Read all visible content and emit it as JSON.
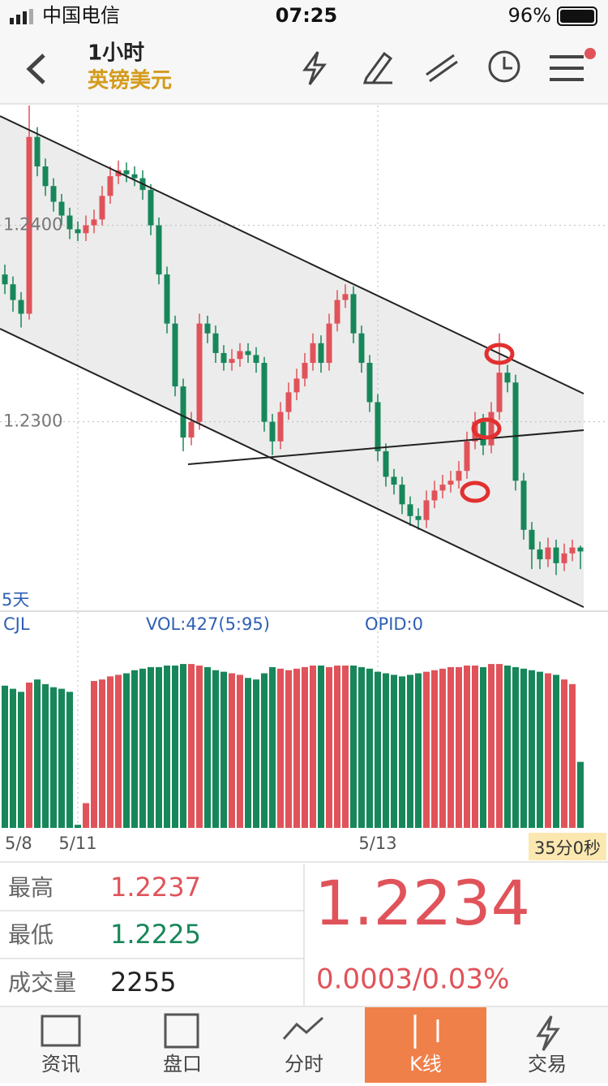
{
  "status_bar": {
    "carrier": "中国电信",
    "time": "07:25",
    "battery": "96%"
  },
  "header": {
    "period": "1小时",
    "symbol": "英镑美元"
  },
  "chart_data": {
    "type": "candlestick",
    "range_label": "5天",
    "up_color": "#e0535a",
    "down_color": "#17875a",
    "categories": [
      "5/8",
      null,
      null,
      null,
      null,
      null,
      null,
      null,
      null,
      "5/11",
      null,
      null,
      null,
      null,
      null,
      null,
      null,
      null,
      null,
      null,
      null,
      null,
      null,
      null,
      null,
      null,
      null,
      null,
      null,
      null,
      null,
      null,
      null,
      null,
      null,
      null,
      null,
      null,
      null,
      null,
      null,
      null,
      null,
      null,
      null,
      null,
      "5/13",
      null,
      null,
      null,
      null,
      null,
      null,
      null,
      null,
      null,
      null,
      null,
      null,
      null,
      null,
      null,
      null,
      null,
      null,
      null,
      null,
      null,
      null,
      null,
      null,
      null
    ],
    "candles": [
      [
        1.2375,
        1.238,
        1.2365,
        1.237
      ],
      [
        1.237,
        1.2374,
        1.2356,
        1.2362
      ],
      [
        1.2362,
        1.2366,
        1.2348,
        1.2355
      ],
      [
        1.2355,
        1.2461,
        1.2352,
        1.2445
      ],
      [
        1.2445,
        1.245,
        1.2425,
        1.243
      ],
      [
        1.243,
        1.2434,
        1.2415,
        1.242
      ],
      [
        1.242,
        1.2424,
        1.2407,
        1.2412
      ],
      [
        1.2412,
        1.2416,
        1.24,
        1.2405
      ],
      [
        1.2405,
        1.2409,
        1.2393,
        1.2398
      ],
      [
        1.2398,
        1.2402,
        1.2392,
        1.2396
      ],
      [
        1.2396,
        1.2405,
        1.2392,
        1.24
      ],
      [
        1.24,
        1.2408,
        1.2396,
        1.2403
      ],
      [
        1.2403,
        1.242,
        1.24,
        1.2415
      ],
      [
        1.2415,
        1.243,
        1.2411,
        1.2425
      ],
      [
        1.2425,
        1.2433,
        1.2421,
        1.2428
      ],
      [
        1.2428,
        1.2432,
        1.2422,
        1.2426
      ],
      [
        1.2426,
        1.243,
        1.242,
        1.2424
      ],
      [
        1.2424,
        1.2428,
        1.2413,
        1.2418
      ],
      [
        1.2418,
        1.2421,
        1.2395,
        1.24
      ],
      [
        1.24,
        1.2404,
        1.237,
        1.2375
      ],
      [
        1.2375,
        1.2379,
        1.2345,
        1.235
      ],
      [
        1.235,
        1.2354,
        1.2313,
        1.2318
      ],
      [
        1.2318,
        1.2322,
        1.2285,
        1.2292
      ],
      [
        1.2292,
        1.2305,
        1.2288,
        1.23
      ],
      [
        1.23,
        1.2355,
        1.2296,
        1.235
      ],
      [
        1.235,
        1.2354,
        1.234,
        1.2345
      ],
      [
        1.2345,
        1.2349,
        1.233,
        1.2335
      ],
      [
        1.2335,
        1.2339,
        1.2326,
        1.233
      ],
      [
        1.233,
        1.2337,
        1.2326,
        1.2332
      ],
      [
        1.2332,
        1.234,
        1.2328,
        1.2336
      ],
      [
        1.2336,
        1.234,
        1.233,
        1.2334
      ],
      [
        1.2334,
        1.2338,
        1.2325,
        1.233
      ],
      [
        1.233,
        1.2333,
        1.2295,
        1.23
      ],
      [
        1.23,
        1.2304,
        1.2283,
        1.229
      ],
      [
        1.229,
        1.231,
        1.2286,
        1.2305
      ],
      [
        1.2305,
        1.232,
        1.2301,
        1.2315
      ],
      [
        1.2315,
        1.2327,
        1.2311,
        1.2322
      ],
      [
        1.2322,
        1.2335,
        1.2318,
        1.233
      ],
      [
        1.233,
        1.2345,
        1.2326,
        1.234
      ],
      [
        1.234,
        1.2344,
        1.2325,
        1.233
      ],
      [
        1.233,
        1.2355,
        1.2326,
        1.235
      ],
      [
        1.235,
        1.2367,
        1.2346,
        1.2362
      ],
      [
        1.2362,
        1.237,
        1.2358,
        1.2365
      ],
      [
        1.2365,
        1.2369,
        1.234,
        1.2345
      ],
      [
        1.2345,
        1.2349,
        1.2325,
        1.233
      ],
      [
        1.233,
        1.2334,
        1.2305,
        1.231
      ],
      [
        1.231,
        1.2314,
        1.228,
        1.2285
      ],
      [
        1.2285,
        1.2289,
        1.2267,
        1.2272
      ],
      [
        1.2272,
        1.2276,
        1.2263,
        1.2268
      ],
      [
        1.2268,
        1.2272,
        1.2253,
        1.2258
      ],
      [
        1.2258,
        1.2262,
        1.2247,
        1.2252
      ],
      [
        1.2252,
        1.2256,
        1.2245,
        1.225
      ],
      [
        1.225,
        1.2265,
        1.2246,
        1.226
      ],
      [
        1.226,
        1.227,
        1.2256,
        1.2265
      ],
      [
        1.2265,
        1.2273,
        1.2261,
        1.2268
      ],
      [
        1.2268,
        1.2275,
        1.2264,
        1.227
      ],
      [
        1.227,
        1.228,
        1.2266,
        1.2275
      ],
      [
        1.2275,
        1.2295,
        1.2271,
        1.229
      ],
      [
        1.229,
        1.2305,
        1.2286,
        1.23
      ],
      [
        1.23,
        1.2304,
        1.2283,
        1.2288
      ],
      [
        1.2288,
        1.231,
        1.2284,
        1.2305
      ],
      [
        1.2305,
        1.2345,
        1.2301,
        1.2325
      ],
      [
        1.2325,
        1.2329,
        1.2315,
        1.232
      ],
      [
        1.232,
        1.2324,
        1.2265,
        1.227
      ],
      [
        1.227,
        1.2274,
        1.224,
        1.2245
      ],
      [
        1.2245,
        1.2249,
        1.2225,
        1.2235
      ],
      [
        1.2235,
        1.2239,
        1.2225,
        1.223
      ],
      [
        1.223,
        1.2241,
        1.2226,
        1.2236
      ],
      [
        1.2236,
        1.224,
        1.2222,
        1.2228
      ],
      [
        1.2228,
        1.2238,
        1.2224,
        1.2233
      ],
      [
        1.2233,
        1.224,
        1.2229,
        1.2236
      ],
      [
        1.2236,
        1.2237,
        1.2225,
        1.2234
      ]
    ],
    "ylim": [
      1.2204,
      1.2461
    ],
    "yticks": [
      {
        "value": 1.24,
        "label": "1.2400"
      },
      {
        "value": 1.23,
        "label": "1.2300"
      }
    ],
    "grid": true,
    "volume": {
      "name": "CJL",
      "indicator": "VOL:427(5:95)",
      "opid": "OPID:0",
      "ylim": [
        0,
        1260
      ],
      "values": [
        920,
        900,
        880,
        940,
        960,
        930,
        910,
        900,
        880,
        20,
        160,
        950,
        960,
        980,
        990,
        1000,
        1020,
        1030,
        1040,
        1040,
        1050,
        1050,
        1060,
        1060,
        1050,
        1040,
        1020,
        1010,
        1000,
        990,
        970,
        960,
        1000,
        1040,
        1030,
        1020,
        1030,
        1040,
        1050,
        1050,
        1040,
        1050,
        1050,
        1050,
        1040,
        1030,
        1010,
        1000,
        990,
        980,
        990,
        1000,
        1010,
        1020,
        1030,
        1040,
        1040,
        1050,
        1050,
        1040,
        1060,
        1060,
        1050,
        1040,
        1030,
        1020,
        1010,
        1000,
        990,
        960,
        930,
        427
      ]
    },
    "countdown": "35分0秒"
  },
  "quote": {
    "high_label": "最高",
    "high": 1.2237,
    "low_label": "最低",
    "low": 1.2225,
    "volume_label": "成交量",
    "volume": 2255,
    "price": 1.2234,
    "change": "0.0003/0.03%"
  },
  "tabs": [
    "资讯",
    "盘口",
    "分时",
    "K线",
    "交易"
  ]
}
